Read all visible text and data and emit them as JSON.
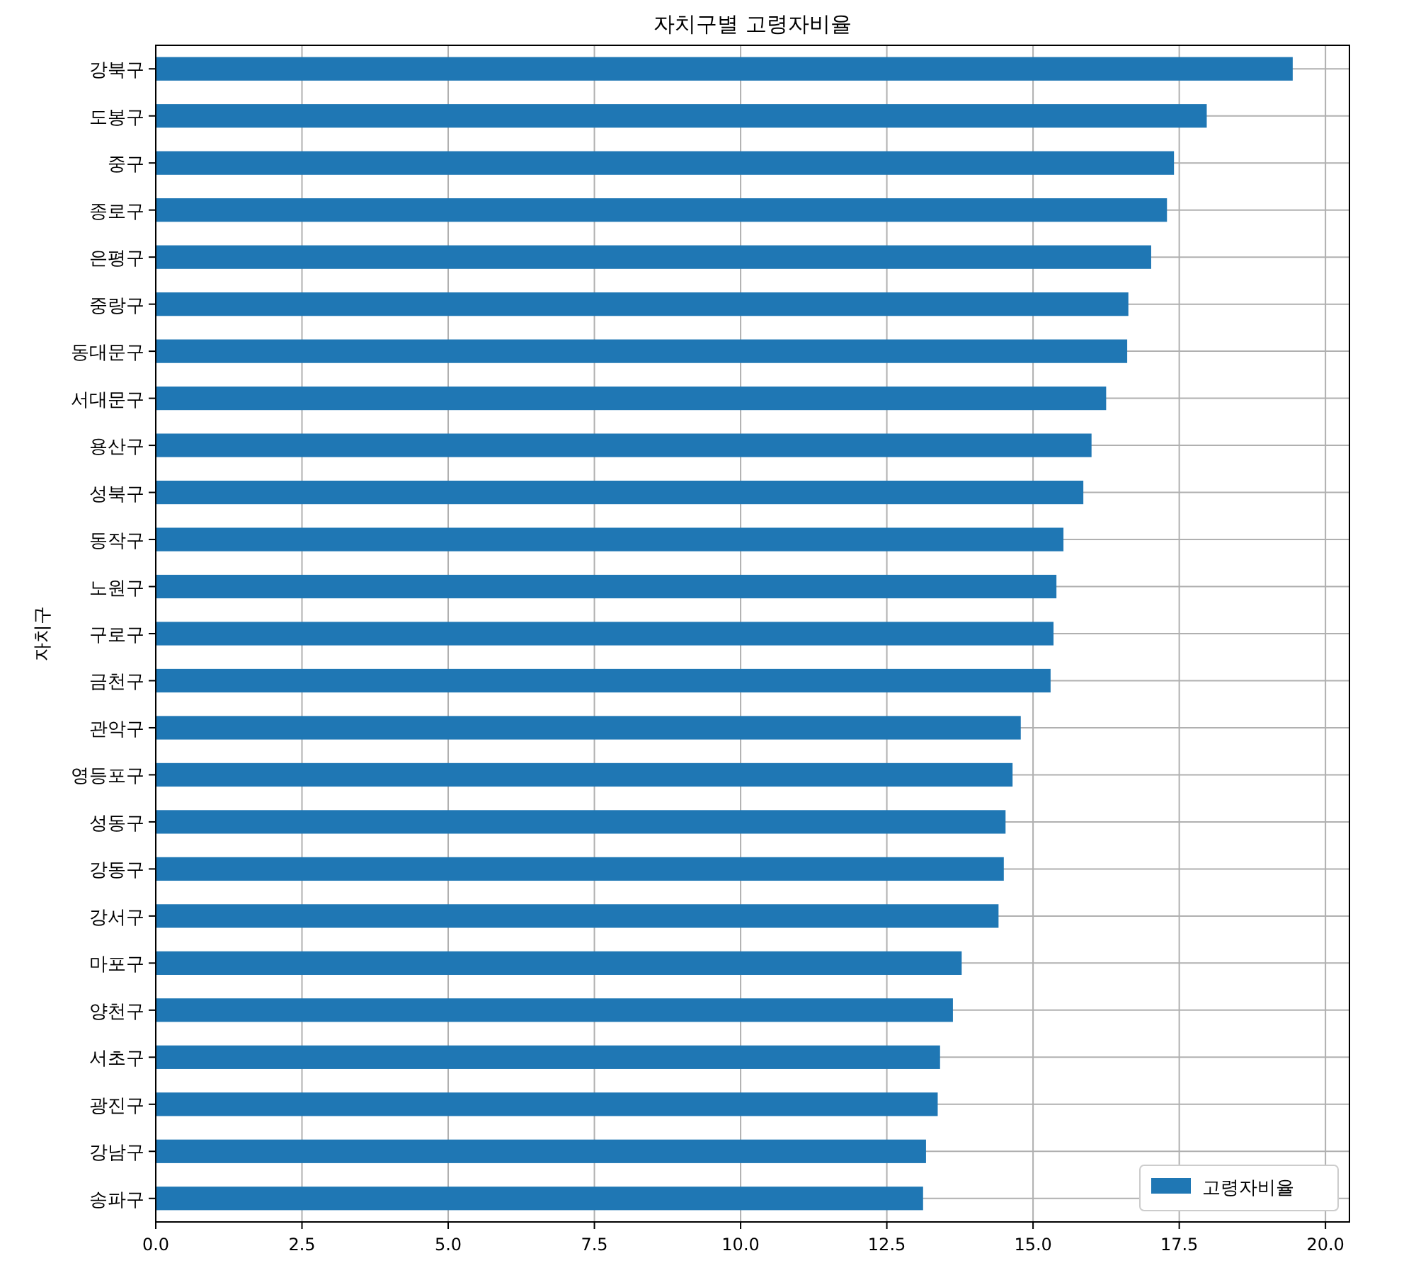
{
  "chart_data": {
    "type": "bar",
    "orientation": "horizontal",
    "title": "자치구별 고령자비율",
    "ylabel": "자치구",
    "categories": [
      "강북구",
      "도봉구",
      "중구",
      "종로구",
      "은평구",
      "중랑구",
      "동대문구",
      "서대문구",
      "용산구",
      "성북구",
      "동작구",
      "노원구",
      "구로구",
      "금천구",
      "관악구",
      "영등포구",
      "성동구",
      "강동구",
      "강서구",
      "마포구",
      "양천구",
      "서초구",
      "광진구",
      "강남구",
      "송파구"
    ],
    "series": [
      {
        "name": "고령자비율",
        "color": "#1f77b4",
        "values": [
          19.44,
          17.97,
          17.41,
          17.29,
          17.02,
          16.63,
          16.61,
          16.25,
          16.0,
          15.86,
          15.52,
          15.4,
          15.35,
          15.3,
          14.79,
          14.65,
          14.53,
          14.5,
          14.41,
          13.78,
          13.63,
          13.41,
          13.37,
          13.17,
          13.12
        ]
      }
    ],
    "xlim": [
      0,
      20.41
    ],
    "xticks": [
      {
        "value": 0,
        "label": "0.0"
      },
      {
        "value": 2.5,
        "label": "2.5"
      },
      {
        "value": 5,
        "label": "5.0"
      },
      {
        "value": 7.5,
        "label": "7.5"
      },
      {
        "value": 10,
        "label": "10.0"
      },
      {
        "value": 12.5,
        "label": "12.5"
      },
      {
        "value": 15,
        "label": "15.0"
      },
      {
        "value": 17.5,
        "label": "17.5"
      },
      {
        "value": 20,
        "label": "20.0"
      }
    ],
    "grid": true,
    "legend": "bottom right"
  }
}
